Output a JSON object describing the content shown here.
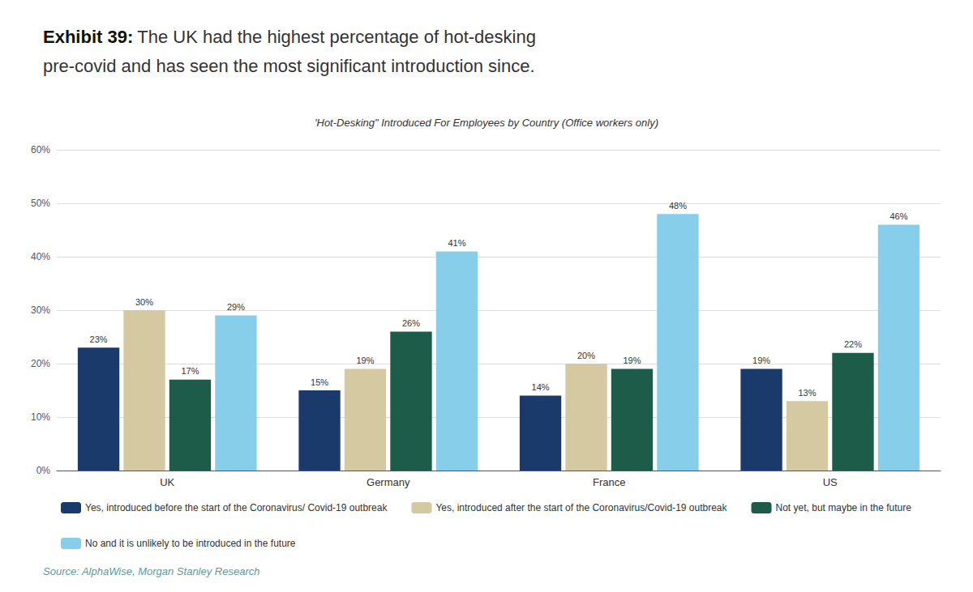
{
  "chart_data": {
    "type": "bar",
    "title": "'Hot-Desking\" Introduced For Employees by Country (Office workers only)",
    "annotations": [
      "Exhibit 39:",
      "The UK had the highest percentage of hot-desking",
      "pre-covid and has seen the most significant introduction since.",
      "Source: AlphaWise, Morgan Stanley Research"
    ],
    "categories": [
      "UK",
      "Germany",
      "France",
      "US"
    ],
    "series": [
      {
        "name": "Yes, introduced before the start of the Coronavirus/ Covid-19 outbreak",
        "color": "#1a3a6b",
        "values": [
          23,
          15,
          14,
          19
        ],
        "value_labels": [
          "23%",
          "15%",
          "14%",
          "19%"
        ]
      },
      {
        "name": "Yes, introduced after the start of the Coronavirus/Covid-19 outbreak",
        "color": "#d4c9a0",
        "values": [
          30,
          19,
          20,
          13
        ],
        "value_labels": [
          "30%",
          "19%",
          "20%",
          "13%"
        ]
      },
      {
        "name": "Not yet, but maybe in the future",
        "color": "#1e5c4a",
        "values": [
          17,
          26,
          19,
          22
        ],
        "value_labels": [
          "17%",
          "26%",
          "19%",
          "22%"
        ]
      },
      {
        "name": "No and it is unlikely to be introduced in the future",
        "color": "#87ceeb",
        "values": [
          29,
          41,
          48,
          46
        ],
        "value_labels": [
          "29%",
          "41%",
          "48%",
          "46%"
        ]
      }
    ],
    "ylim": [
      0,
      60
    ],
    "yticks": [
      {
        "value": 0,
        "label": "0%"
      },
      {
        "value": 10,
        "label": "10%"
      },
      {
        "value": 20,
        "label": "20%"
      },
      {
        "value": 30,
        "label": "30%"
      },
      {
        "value": 40,
        "label": "40%"
      },
      {
        "value": 50,
        "label": "50%"
      },
      {
        "value": 60,
        "label": "60%"
      }
    ],
    "grid": true,
    "legend": "bottom",
    "data_labels": true
  }
}
